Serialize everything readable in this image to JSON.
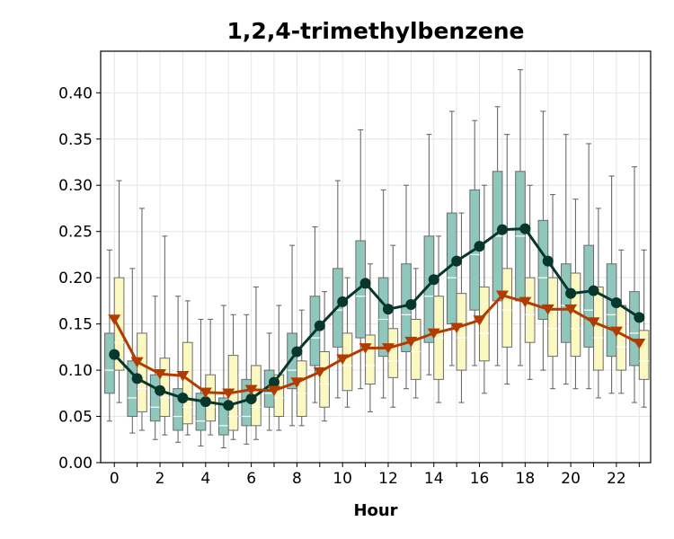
{
  "chart_data": {
    "type": "box",
    "title": "1,2,4-trimethylbenzene",
    "xlabel": "Hour",
    "ylabel": "",
    "xlim": [
      -0.6,
      23.5
    ],
    "ylim": [
      0.0,
      0.445
    ],
    "x_tick_values": [
      0,
      2,
      4,
      6,
      8,
      10,
      12,
      14,
      16,
      18,
      20,
      22
    ],
    "x_tick_labels": [
      "0",
      "2",
      "4",
      "6",
      "8",
      "10",
      "12",
      "14",
      "16",
      "18",
      "20",
      "22"
    ],
    "y_tick_values": [
      0.0,
      0.05,
      0.1,
      0.15,
      0.2,
      0.25,
      0.3,
      0.35,
      0.4
    ],
    "y_tick_labels": [
      "0.00",
      "0.05",
      "0.10",
      "0.15",
      "0.20",
      "0.25",
      "0.30",
      "0.35",
      "0.40"
    ],
    "grid": true,
    "legend": false,
    "hours": [
      0,
      1,
      2,
      3,
      4,
      5,
      6,
      7,
      8,
      9,
      10,
      11,
      12,
      13,
      14,
      15,
      16,
      17,
      18,
      19,
      20,
      21,
      22,
      23
    ],
    "series": [
      {
        "box_color": "#8fc7bc",
        "line_color": "#07372c",
        "marker": "circle",
        "mean": [
          0.117,
          0.091,
          0.078,
          0.07,
          0.066,
          0.062,
          0.069,
          0.087,
          0.12,
          0.148,
          0.174,
          0.194,
          0.166,
          0.171,
          0.198,
          0.218,
          0.234,
          0.252,
          0.253,
          0.218,
          0.183,
          0.186,
          0.173,
          0.157
        ],
        "box": [
          {
            "whislo": 0.045,
            "q1": 0.075,
            "med": 0.1,
            "q3": 0.14,
            "whishi": 0.23
          },
          {
            "whislo": 0.032,
            "q1": 0.05,
            "med": 0.07,
            "q3": 0.11,
            "whishi": 0.21
          },
          {
            "whislo": 0.025,
            "q1": 0.045,
            "med": 0.06,
            "q3": 0.095,
            "whishi": 0.18
          },
          {
            "whislo": 0.022,
            "q1": 0.035,
            "med": 0.05,
            "q3": 0.08,
            "whishi": 0.18
          },
          {
            "whislo": 0.018,
            "q1": 0.035,
            "med": 0.045,
            "q3": 0.075,
            "whishi": 0.155
          },
          {
            "whislo": 0.016,
            "q1": 0.03,
            "med": 0.04,
            "q3": 0.07,
            "whishi": 0.17
          },
          {
            "whislo": 0.02,
            "q1": 0.04,
            "med": 0.05,
            "q3": 0.09,
            "whishi": 0.16
          },
          {
            "whislo": 0.035,
            "q1": 0.06,
            "med": 0.075,
            "q3": 0.1,
            "whishi": 0.14
          },
          {
            "whislo": 0.04,
            "q1": 0.08,
            "med": 0.1,
            "q3": 0.14,
            "whishi": 0.235
          },
          {
            "whislo": 0.065,
            "q1": 0.105,
            "med": 0.135,
            "q3": 0.18,
            "whishi": 0.255
          },
          {
            "whislo": 0.07,
            "q1": 0.125,
            "med": 0.165,
            "q3": 0.21,
            "whishi": 0.305
          },
          {
            "whislo": 0.08,
            "q1": 0.135,
            "med": 0.18,
            "q3": 0.24,
            "whishi": 0.36
          },
          {
            "whislo": 0.07,
            "q1": 0.115,
            "med": 0.155,
            "q3": 0.2,
            "whishi": 0.295
          },
          {
            "whislo": 0.08,
            "q1": 0.12,
            "med": 0.16,
            "q3": 0.215,
            "whishi": 0.3
          },
          {
            "whislo": 0.095,
            "q1": 0.13,
            "med": 0.18,
            "q3": 0.245,
            "whishi": 0.355
          },
          {
            "whislo": 0.105,
            "q1": 0.15,
            "med": 0.2,
            "q3": 0.27,
            "whishi": 0.38
          },
          {
            "whislo": 0.105,
            "q1": 0.165,
            "med": 0.225,
            "q3": 0.295,
            "whishi": 0.37
          },
          {
            "whislo": 0.105,
            "q1": 0.175,
            "med": 0.245,
            "q3": 0.315,
            "whishi": 0.385
          },
          {
            "whislo": 0.105,
            "q1": 0.175,
            "med": 0.245,
            "q3": 0.315,
            "whishi": 0.425
          },
          {
            "whislo": 0.1,
            "q1": 0.155,
            "med": 0.2,
            "q3": 0.262,
            "whishi": 0.38
          },
          {
            "whislo": 0.085,
            "q1": 0.13,
            "med": 0.17,
            "q3": 0.215,
            "whishi": 0.355
          },
          {
            "whislo": 0.08,
            "q1": 0.125,
            "med": 0.165,
            "q3": 0.235,
            "whishi": 0.345
          },
          {
            "whislo": 0.075,
            "q1": 0.115,
            "med": 0.16,
            "q3": 0.215,
            "whishi": 0.31
          },
          {
            "whislo": 0.065,
            "q1": 0.105,
            "med": 0.14,
            "q3": 0.185,
            "whishi": 0.32
          }
        ]
      },
      {
        "box_color": "#fbf8c2",
        "line_color": "#b33b00",
        "marker": "triangle-down",
        "mean": [
          0.155,
          0.109,
          0.096,
          0.094,
          0.076,
          0.075,
          0.079,
          0.078,
          0.087,
          0.098,
          0.112,
          0.124,
          0.124,
          0.131,
          0.14,
          0.146,
          0.154,
          0.181,
          0.174,
          0.166,
          0.166,
          0.152,
          0.142,
          0.129
        ],
        "box": [
          {
            "whislo": 0.065,
            "q1": 0.1,
            "med": 0.13,
            "q3": 0.2,
            "whishi": 0.305
          },
          {
            "whislo": 0.035,
            "q1": 0.055,
            "med": 0.08,
            "q3": 0.14,
            "whishi": 0.275
          },
          {
            "whislo": 0.03,
            "q1": 0.05,
            "med": 0.07,
            "q3": 0.113,
            "whishi": 0.245
          },
          {
            "whislo": 0.03,
            "q1": 0.042,
            "med": 0.06,
            "q3": 0.13,
            "whishi": 0.175
          },
          {
            "whislo": 0.03,
            "q1": 0.045,
            "med": 0.06,
            "q3": 0.095,
            "whishi": 0.155
          },
          {
            "whislo": 0.025,
            "q1": 0.035,
            "med": 0.05,
            "q3": 0.116,
            "whishi": 0.16
          },
          {
            "whislo": 0.025,
            "q1": 0.04,
            "med": 0.06,
            "q3": 0.105,
            "whishi": 0.19
          },
          {
            "whislo": 0.035,
            "q1": 0.05,
            "med": 0.07,
            "q3": 0.095,
            "whishi": 0.17
          },
          {
            "whislo": 0.04,
            "q1": 0.05,
            "med": 0.075,
            "q3": 0.11,
            "whishi": 0.165
          },
          {
            "whislo": 0.045,
            "q1": 0.06,
            "med": 0.085,
            "q3": 0.12,
            "whishi": 0.185
          },
          {
            "whislo": 0.06,
            "q1": 0.078,
            "med": 0.105,
            "q3": 0.14,
            "whishi": 0.2
          },
          {
            "whislo": 0.055,
            "q1": 0.085,
            "med": 0.105,
            "q3": 0.138,
            "whishi": 0.215
          },
          {
            "whislo": 0.06,
            "q1": 0.092,
            "med": 0.11,
            "q3": 0.145,
            "whishi": 0.235
          },
          {
            "whislo": 0.07,
            "q1": 0.09,
            "med": 0.12,
            "q3": 0.155,
            "whishi": 0.21
          },
          {
            "whislo": 0.065,
            "q1": 0.09,
            "med": 0.135,
            "q3": 0.18,
            "whishi": 0.245
          },
          {
            "whislo": 0.065,
            "q1": 0.1,
            "med": 0.135,
            "q3": 0.183,
            "whishi": 0.27
          },
          {
            "whislo": 0.075,
            "q1": 0.11,
            "med": 0.14,
            "q3": 0.19,
            "whishi": 0.3
          },
          {
            "whislo": 0.085,
            "q1": 0.125,
            "med": 0.165,
            "q3": 0.21,
            "whishi": 0.355
          },
          {
            "whislo": 0.09,
            "q1": 0.13,
            "med": 0.16,
            "q3": 0.2,
            "whishi": 0.3
          },
          {
            "whislo": 0.08,
            "q1": 0.115,
            "med": 0.145,
            "q3": 0.2,
            "whishi": 0.29
          },
          {
            "whislo": 0.08,
            "q1": 0.115,
            "med": 0.145,
            "q3": 0.205,
            "whishi": 0.285
          },
          {
            "whislo": 0.07,
            "q1": 0.1,
            "med": 0.135,
            "q3": 0.19,
            "whishi": 0.275
          },
          {
            "whislo": 0.075,
            "q1": 0.1,
            "med": 0.125,
            "q3": 0.17,
            "whishi": 0.23
          },
          {
            "whislo": 0.06,
            "q1": 0.09,
            "med": 0.11,
            "q3": 0.143,
            "whishi": 0.23
          }
        ]
      }
    ]
  }
}
